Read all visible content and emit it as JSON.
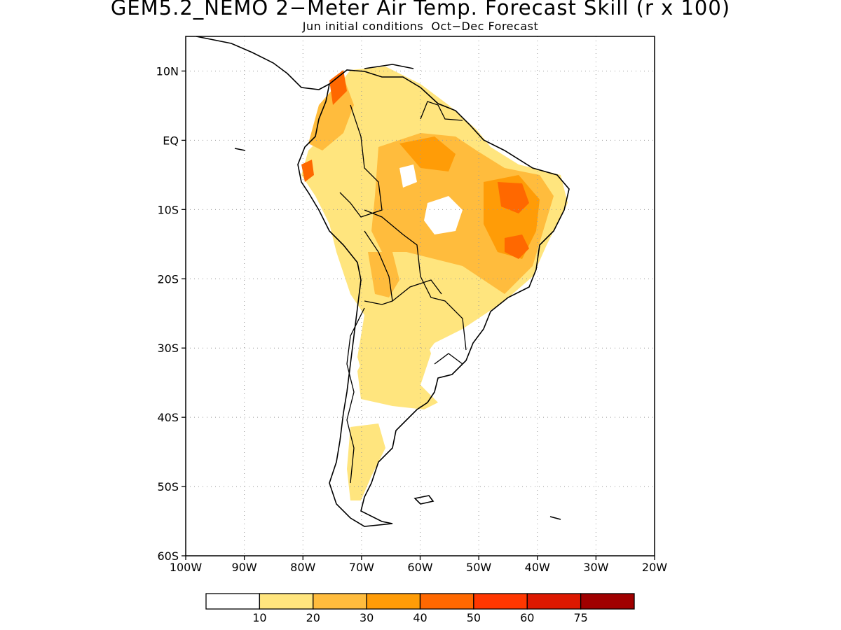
{
  "title": "GEM5.2_NEMO 2−Meter Air Temp. Forecast Skill (r x 100)",
  "subtitle": "Jun initial conditions  Oct−Dec Forecast",
  "map": {
    "lon_range": [
      -100,
      -20
    ],
    "lat_range": [
      -60,
      15
    ],
    "lon_ticks": [
      {
        "value": -100,
        "label": "100W"
      },
      {
        "value": -90,
        "label": "90W"
      },
      {
        "value": -80,
        "label": "80W"
      },
      {
        "value": -70,
        "label": "70W"
      },
      {
        "value": -60,
        "label": "60W"
      },
      {
        "value": -50,
        "label": "50W"
      },
      {
        "value": -40,
        "label": "40W"
      },
      {
        "value": -30,
        "label": "30W"
      },
      {
        "value": -20,
        "label": "20W"
      }
    ],
    "lat_ticks": [
      {
        "value": 10,
        "label": "10N"
      },
      {
        "value": 0,
        "label": "EQ"
      },
      {
        "value": -10,
        "label": "10S"
      },
      {
        "value": -20,
        "label": "20S"
      },
      {
        "value": -30,
        "label": "30S"
      },
      {
        "value": -40,
        "label": "40S"
      },
      {
        "value": -50,
        "label": "50S"
      },
      {
        "value": -60,
        "label": "60S"
      }
    ],
    "grid": "dotted"
  },
  "colorbar": {
    "colors": [
      "#ffffff",
      "#ffe57e",
      "#ffbc3d",
      "#ff9c07",
      "#ff6800",
      "#ff3700",
      "#dd1800",
      "#a00000"
    ],
    "labels": [
      "10",
      "20",
      "30",
      "40",
      "50",
      "60",
      "75"
    ]
  },
  "skill_regions": [
    {
      "level": 1,
      "lon": -68,
      "lat": -5,
      "note": "broad northern coverage"
    },
    {
      "level": 2,
      "lon": -55,
      "lat": -8
    },
    {
      "level": 3,
      "lon": -42,
      "lat": -9
    },
    {
      "level": 4,
      "lon": -43,
      "lat": -14
    },
    {
      "level": 1,
      "lon": -66,
      "lat": -32
    },
    {
      "level": 1,
      "lon": -70,
      "lat": -45
    }
  ]
}
